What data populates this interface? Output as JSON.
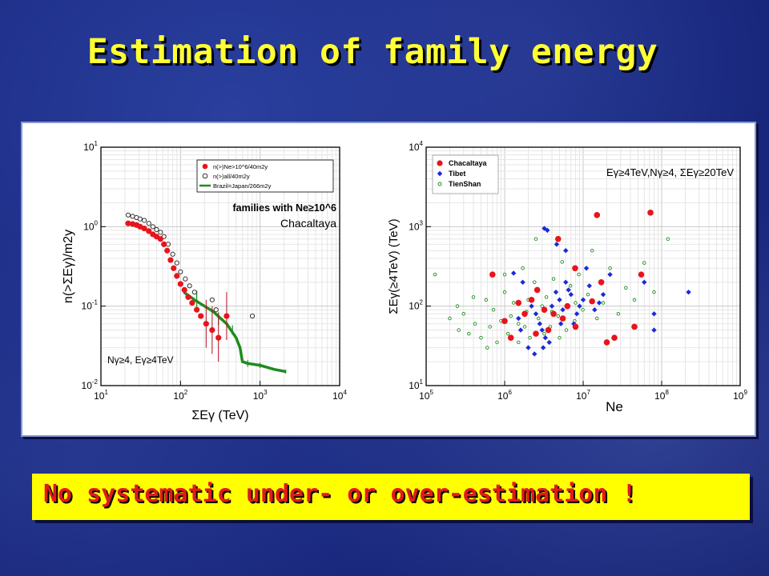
{
  "slide": {
    "title": "Estimation of family energy",
    "conclusion": "No systematic under- or over-estimation !"
  },
  "colors": {
    "title": "#ffff33",
    "background": "#1c2d86",
    "banner_bg": "#ffff00",
    "banner_text": "#e01a1a",
    "red": "#e8141c",
    "green": "#1e8c1e",
    "blue": "#1a2ad8"
  },
  "chart_data": [
    {
      "type": "line",
      "xlabel": "ΣEγ (TeV)",
      "ylabel": "n(>ΣEγ)/m2y",
      "xscale": "log",
      "yscale": "log",
      "xlim": [
        10,
        10000
      ],
      "ylim": [
        0.01,
        10
      ],
      "x_tick_labels": [
        "10^1",
        "10^2",
        "10^3",
        "10^4"
      ],
      "y_tick_labels": [
        "10^-2",
        "10^-1",
        "10^0",
        "10^1"
      ],
      "grid": true,
      "legend": {
        "placement": "top-right",
        "entries": [
          "n(>)Ne>10^6/40m2y",
          "n(>)all/40m2y",
          "Brazil=Japan/266m2y"
        ]
      },
      "annotations": [
        "families with Ne≥10^6",
        "Chacaltaya",
        "Nγ≥4, Eγ≥4TeV"
      ],
      "series": [
        {
          "name": "n(>)Ne>10^6/40m2y",
          "style": "filled-circle",
          "color": "#e8141c",
          "points": [
            [
              22,
              1.1
            ],
            [
              25,
              1.08
            ],
            [
              28,
              1.05
            ],
            [
              31,
              1.0
            ],
            [
              35,
              0.95
            ],
            [
              40,
              0.88
            ],
            [
              45,
              0.8
            ],
            [
              50,
              0.75
            ],
            [
              56,
              0.7
            ],
            [
              62,
              0.6
            ],
            [
              68,
              0.5
            ],
            [
              75,
              0.38
            ],
            [
              82,
              0.3
            ],
            [
              90,
              0.24
            ],
            [
              100,
              0.19
            ],
            [
              112,
              0.16
            ],
            [
              125,
              0.13
            ],
            [
              140,
              0.11
            ],
            [
              160,
              0.09
            ],
            [
              180,
              0.075
            ],
            [
              210,
              0.06
            ],
            [
              250,
              0.05
            ],
            [
              300,
              0.04
            ],
            [
              380,
              0.075
            ]
          ]
        },
        {
          "name": "n(>)all/40m2y",
          "style": "open-circle",
          "color": "#333333",
          "points": [
            [
              22,
              1.4
            ],
            [
              25,
              1.35
            ],
            [
              28,
              1.3
            ],
            [
              31,
              1.25
            ],
            [
              35,
              1.2
            ],
            [
              40,
              1.1
            ],
            [
              45,
              1.0
            ],
            [
              50,
              0.92
            ],
            [
              56,
              0.85
            ],
            [
              62,
              0.75
            ],
            [
              70,
              0.6
            ],
            [
              80,
              0.45
            ],
            [
              90,
              0.35
            ],
            [
              100,
              0.27
            ],
            [
              115,
              0.22
            ],
            [
              130,
              0.18
            ],
            [
              150,
              0.15
            ],
            [
              250,
              0.12
            ],
            [
              280,
              0.09
            ],
            [
              800,
              0.075
            ]
          ]
        },
        {
          "name": "Brazil=Japan/266m2y",
          "style": "line",
          "color": "#1e8c1e",
          "points": [
            [
              110,
              0.15
            ],
            [
              150,
              0.12
            ],
            [
              200,
              0.1
            ],
            [
              260,
              0.085
            ],
            [
              320,
              0.07
            ],
            [
              380,
              0.06
            ],
            [
              430,
              0.05
            ],
            [
              500,
              0.04
            ],
            [
              560,
              0.03
            ],
            [
              600,
              0.02
            ],
            [
              700,
              0.019
            ],
            [
              1000,
              0.018
            ],
            [
              1500,
              0.016
            ],
            [
              2100,
              0.015
            ]
          ]
        }
      ]
    },
    {
      "type": "scatter",
      "xlabel": "Ne",
      "ylabel": "ΣEγ(≥4TeV) (TeV)",
      "xscale": "log",
      "yscale": "log",
      "xlim": [
        100000,
        1000000000
      ],
      "ylim": [
        10,
        10000
      ],
      "x_tick_labels": [
        "10^5",
        "10^6",
        "10^7",
        "10^8",
        "10^9"
      ],
      "y_tick_labels": [
        "10^1",
        "10^2",
        "10^3",
        "10^4"
      ],
      "grid": true,
      "legend": {
        "placement": "top-left",
        "entries": [
          "Chacaltaya",
          "Tibet",
          "TienShan"
        ]
      },
      "annotations": [
        "Eγ≥4TeV,Nγ≥4, ΣEγ≥20TeV"
      ],
      "series": [
        {
          "name": "Chacaltaya",
          "style": "filled-circle",
          "color": "#e8141c",
          "points": [
            [
              700000,
              250
            ],
            [
              1500000,
              110
            ],
            [
              2200000,
              120
            ],
            [
              2600000,
              160
            ],
            [
              3200000,
              90
            ],
            [
              4200000,
              80
            ],
            [
              4800000,
              700
            ],
            [
              6300000,
              100
            ],
            [
              7900000,
              300
            ],
            [
              13000000,
              115
            ],
            [
              15000000,
              1400
            ],
            [
              17000000,
              200
            ],
            [
              25000000,
              40
            ],
            [
              20000000,
              35
            ],
            [
              45000000,
              55
            ],
            [
              55000000,
              250
            ],
            [
              72000000,
              1500
            ],
            [
              3600000,
              50
            ],
            [
              1000000,
              65
            ],
            [
              1200000,
              40
            ],
            [
              8000000,
              55
            ],
            [
              2500000,
              45
            ],
            [
              5500000,
              70
            ],
            [
              1800000,
              80
            ]
          ]
        },
        {
          "name": "Tibet",
          "style": "filled-diamond",
          "color": "#1a2ad8",
          "points": [
            [
              3200000,
              950
            ],
            [
              3500000,
              900
            ],
            [
              1300000,
              260
            ],
            [
              1700000,
              200
            ],
            [
              2200000,
              100
            ],
            [
              2500000,
              80
            ],
            [
              2800000,
              60
            ],
            [
              3000000,
              50
            ],
            [
              3300000,
              40
            ],
            [
              3700000,
              35
            ],
            [
              4000000,
              100
            ],
            [
              4500000,
              150
            ],
            [
              5000000,
              120
            ],
            [
              5500000,
              90
            ],
            [
              6000000,
              200
            ],
            [
              6500000,
              160
            ],
            [
              7000000,
              140
            ],
            [
              7600000,
              60
            ],
            [
              8300000,
              80
            ],
            [
              9000000,
              100
            ],
            [
              10000000,
              120
            ],
            [
              11000000,
              300
            ],
            [
              12000000,
              180
            ],
            [
              14000000,
              90
            ],
            [
              16000000,
              110
            ],
            [
              18000000,
              140
            ],
            [
              22000000,
              250
            ],
            [
              60000000,
              200
            ],
            [
              80000000,
              80
            ],
            [
              80000000,
              50
            ],
            [
              220000000,
              150
            ],
            [
              2000000,
              30
            ],
            [
              1600000,
              50
            ],
            [
              1500000,
              70
            ],
            [
              2400000,
              25
            ],
            [
              3100000,
              30
            ],
            [
              5200000,
              60
            ],
            [
              6000000,
              500
            ],
            [
              4600000,
              600
            ]
          ]
        },
        {
          "name": "TienShan",
          "style": "open-circle",
          "color": "#1e8c1e",
          "points": [
            [
              130000,
              250
            ],
            [
              200000,
              70
            ],
            [
              260000,
              50
            ],
            [
              300000,
              80
            ],
            [
              350000,
              45
            ],
            [
              420000,
              60
            ],
            [
              500000,
              40
            ],
            [
              580000,
              120
            ],
            [
              650000,
              55
            ],
            [
              720000,
              90
            ],
            [
              800000,
              35
            ],
            [
              900000,
              65
            ],
            [
              1000000,
              150
            ],
            [
              1100000,
              45
            ],
            [
              1300000,
              110
            ],
            [
              1500000,
              60
            ],
            [
              1700000,
              300
            ],
            [
              1900000,
              85
            ],
            [
              2100000,
              40
            ],
            [
              2400000,
              200
            ],
            [
              2700000,
              70
            ],
            [
              3000000,
              100
            ],
            [
              3400000,
              130
            ],
            [
              3800000,
              55
            ],
            [
              4200000,
              220
            ],
            [
              4800000,
              75
            ],
            [
              5400000,
              360
            ],
            [
              6100000,
              50
            ],
            [
              6900000,
              180
            ],
            [
              7800000,
              65
            ],
            [
              8800000,
              250
            ],
            [
              9900000,
              90
            ],
            [
              11500000,
              140
            ],
            [
              13000000,
              500
            ],
            [
              15000000,
              70
            ],
            [
              18000000,
              110
            ],
            [
              22000000,
              300
            ],
            [
              28000000,
              80
            ],
            [
              35000000,
              170
            ],
            [
              45000000,
              120
            ],
            [
              60000000,
              350
            ],
            [
              80000000,
              150
            ],
            [
              120000000,
              700
            ],
            [
              1000000,
              250
            ],
            [
              2500000,
              700
            ],
            [
              600000,
              30
            ],
            [
              1500000,
              35
            ],
            [
              400000,
              130
            ],
            [
              250000,
              100
            ],
            [
              1800000,
              55
            ],
            [
              3200000,
              45
            ],
            [
              2000000,
              120
            ],
            [
              1200000,
              75
            ],
            [
              4000000,
              85
            ],
            [
              5000000,
              40
            ],
            [
              8000000,
              110
            ]
          ]
        }
      ]
    }
  ]
}
